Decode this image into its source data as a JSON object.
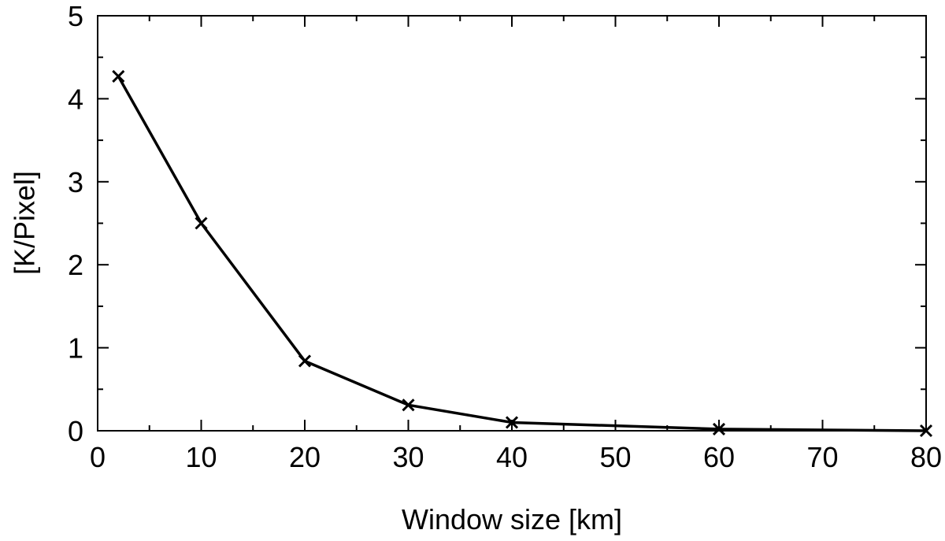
{
  "chart_data": {
    "type": "line",
    "x_label": "Window size [km]",
    "y_label": "[K/Pixel]",
    "x": [
      2,
      10,
      20,
      30,
      40,
      60,
      80
    ],
    "series": [
      {
        "name": "K/Pixel",
        "color": "#000000",
        "values": [
          4.27,
          2.5,
          0.84,
          0.31,
          0.1,
          0.02,
          0.0
        ]
      }
    ],
    "xlim": [
      0,
      80
    ],
    "xticks": [
      0,
      10,
      20,
      30,
      40,
      50,
      60,
      70,
      80
    ],
    "ylim": [
      0,
      5
    ],
    "yticks": [
      0,
      1,
      2,
      3,
      4,
      5
    ],
    "grid": false,
    "marker": "x"
  }
}
